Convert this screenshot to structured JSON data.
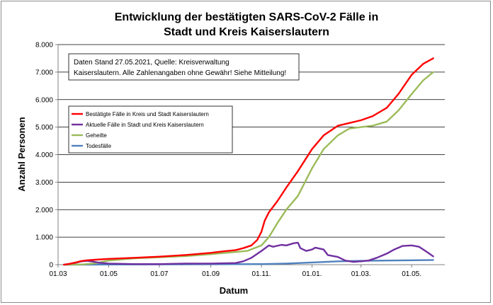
{
  "chart_data": {
    "type": "line",
    "title": [
      "Entwicklung der bestätigten SARS-CoV-2 Fälle in",
      "Stadt und Kreis Kaiserslautern"
    ],
    "xlabel": "Datum",
    "ylabel": "Anzahl Personen",
    "x_axis": {
      "start": "2020-03-01",
      "end": "2021-06-10",
      "ticks": [
        {
          "date": "2020-03-01",
          "label": "01.03"
        },
        {
          "date": "2020-05-01",
          "label": "01.05"
        },
        {
          "date": "2020-07-01",
          "label": "01.07"
        },
        {
          "date": "2020-09-01",
          "label": "01.09"
        },
        {
          "date": "2020-11-01",
          "label": "01.11."
        },
        {
          "date": "2021-01-01",
          "label": "01.01."
        },
        {
          "date": "2021-03-01",
          "label": "01.03."
        },
        {
          "date": "2021-05-01",
          "label": "01.05."
        }
      ]
    },
    "y_axis": {
      "min": 0,
      "max": 8000,
      "ticks": [
        {
          "value": 0,
          "label": "0"
        },
        {
          "value": 1000,
          "label": "1.000"
        },
        {
          "value": 2000,
          "label": "2.000"
        },
        {
          "value": 3000,
          "label": "3.000"
        },
        {
          "value": 4000,
          "label": "4.000"
        },
        {
          "value": 5000,
          "label": "5.000"
        },
        {
          "value": 6000,
          "label": "6.000"
        },
        {
          "value": 7000,
          "label": "7.000"
        },
        {
          "value": 8000,
          "label": "8.000"
        }
      ]
    },
    "grid": "horizontal",
    "legend_position": "upper-left",
    "annotation": [
      "Daten Stand 27.05.2021, Quelle: Kreisverwaltung",
      "Kaiserslautern. Alle Zahlenangaben ohne Gewähr! Siehe Mitteilung!"
    ],
    "series": [
      {
        "name": "Bestätigte Fälle in Kreis und Stadt Kaiserslautern",
        "color": "#ff0000",
        "points": [
          [
            "2020-03-08",
            0
          ],
          [
            "2020-03-15",
            30
          ],
          [
            "2020-03-22",
            80
          ],
          [
            "2020-03-29",
            130
          ],
          [
            "2020-04-05",
            160
          ],
          [
            "2020-04-15",
            180
          ],
          [
            "2020-05-01",
            210
          ],
          [
            "2020-06-01",
            250
          ],
          [
            "2020-07-01",
            290
          ],
          [
            "2020-08-01",
            350
          ],
          [
            "2020-09-01",
            430
          ],
          [
            "2020-09-15",
            480
          ],
          [
            "2020-10-01",
            530
          ],
          [
            "2020-10-10",
            600
          ],
          [
            "2020-10-20",
            700
          ],
          [
            "2020-10-27",
            900
          ],
          [
            "2020-11-01",
            1200
          ],
          [
            "2020-11-05",
            1600
          ],
          [
            "2020-11-10",
            1900
          ],
          [
            "2020-11-20",
            2300
          ],
          [
            "2020-12-01",
            2800
          ],
          [
            "2020-12-15",
            3400
          ],
          [
            "2021-01-01",
            4200
          ],
          [
            "2021-01-15",
            4700
          ],
          [
            "2021-02-01",
            5050
          ],
          [
            "2021-02-15",
            5150
          ],
          [
            "2021-03-01",
            5250
          ],
          [
            "2021-03-15",
            5400
          ],
          [
            "2021-04-01",
            5700
          ],
          [
            "2021-04-15",
            6200
          ],
          [
            "2021-05-01",
            6900
          ],
          [
            "2021-05-15",
            7300
          ],
          [
            "2021-05-27",
            7500
          ]
        ]
      },
      {
        "name": "Aktuelle Fälle in Stadt und Kreis Kaiserslautern",
        "color": "#7030a0",
        "points": [
          [
            "2020-03-08",
            0
          ],
          [
            "2020-03-15",
            30
          ],
          [
            "2020-03-22",
            70
          ],
          [
            "2020-03-29",
            120
          ],
          [
            "2020-04-05",
            140
          ],
          [
            "2020-04-12",
            110
          ],
          [
            "2020-04-20",
            70
          ],
          [
            "2020-05-01",
            40
          ],
          [
            "2020-06-01",
            20
          ],
          [
            "2020-07-01",
            20
          ],
          [
            "2020-08-01",
            40
          ],
          [
            "2020-09-01",
            40
          ],
          [
            "2020-10-01",
            60
          ],
          [
            "2020-10-10",
            120
          ],
          [
            "2020-10-20",
            250
          ],
          [
            "2020-11-01",
            500
          ],
          [
            "2020-11-10",
            700
          ],
          [
            "2020-11-15",
            650
          ],
          [
            "2020-11-25",
            720
          ],
          [
            "2020-12-01",
            700
          ],
          [
            "2020-12-10",
            780
          ],
          [
            "2020-12-15",
            800
          ],
          [
            "2020-12-18",
            600
          ],
          [
            "2020-12-25",
            500
          ],
          [
            "2021-01-01",
            550
          ],
          [
            "2021-01-05",
            620
          ],
          [
            "2021-01-15",
            550
          ],
          [
            "2021-01-20",
            350
          ],
          [
            "2021-02-01",
            280
          ],
          [
            "2021-02-10",
            150
          ],
          [
            "2021-02-20",
            100
          ],
          [
            "2021-03-01",
            120
          ],
          [
            "2021-03-10",
            150
          ],
          [
            "2021-03-20",
            250
          ],
          [
            "2021-04-01",
            400
          ],
          [
            "2021-04-10",
            550
          ],
          [
            "2021-04-20",
            680
          ],
          [
            "2021-05-01",
            700
          ],
          [
            "2021-05-10",
            650
          ],
          [
            "2021-05-20",
            450
          ],
          [
            "2021-05-27",
            300
          ]
        ]
      },
      {
        "name": "Geheilte",
        "color": "#9bbb59",
        "points": [
          [
            "2020-03-08",
            0
          ],
          [
            "2020-04-01",
            10
          ],
          [
            "2020-04-15",
            50
          ],
          [
            "2020-05-01",
            150
          ],
          [
            "2020-06-01",
            230
          ],
          [
            "2020-07-01",
            270
          ],
          [
            "2020-08-01",
            310
          ],
          [
            "2020-09-01",
            380
          ],
          [
            "2020-10-01",
            460
          ],
          [
            "2020-10-15",
            500
          ],
          [
            "2020-11-01",
            700
          ],
          [
            "2020-11-10",
            1000
          ],
          [
            "2020-11-20",
            1500
          ],
          [
            "2020-12-01",
            2000
          ],
          [
            "2020-12-15",
            2500
          ],
          [
            "2021-01-01",
            3500
          ],
          [
            "2021-01-15",
            4200
          ],
          [
            "2021-02-01",
            4700
          ],
          [
            "2021-02-15",
            4950
          ],
          [
            "2021-03-01",
            5000
          ],
          [
            "2021-03-15",
            5050
          ],
          [
            "2021-04-01",
            5200
          ],
          [
            "2021-04-15",
            5600
          ],
          [
            "2021-05-01",
            6200
          ],
          [
            "2021-05-15",
            6700
          ],
          [
            "2021-05-27",
            7000
          ]
        ]
      },
      {
        "name": "Todesfälle",
        "color": "#4f81bd",
        "points": [
          [
            "2020-03-08",
            0
          ],
          [
            "2020-05-01",
            5
          ],
          [
            "2020-08-01",
            10
          ],
          [
            "2020-11-01",
            20
          ],
          [
            "2020-12-01",
            40
          ],
          [
            "2021-01-01",
            80
          ],
          [
            "2021-02-01",
            120
          ],
          [
            "2021-03-01",
            140
          ],
          [
            "2021-04-01",
            150
          ],
          [
            "2021-05-01",
            160
          ],
          [
            "2021-05-27",
            170
          ]
        ]
      }
    ]
  }
}
